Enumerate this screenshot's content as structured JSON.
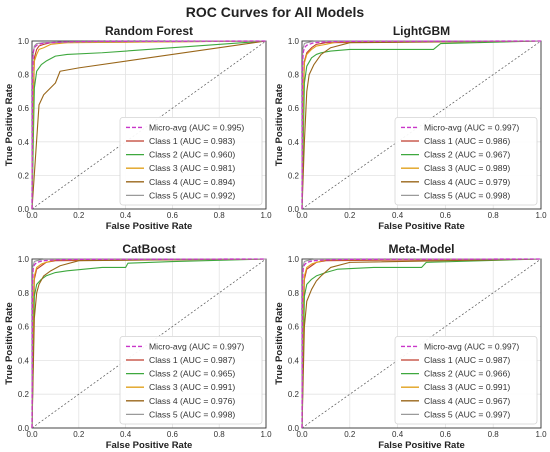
{
  "figure": {
    "title": "ROC Curves for All Models"
  },
  "colors": {
    "micro": "#c936c9",
    "class1": "#c03d2e",
    "class2": "#3ea83e",
    "class3": "#e0a11b",
    "class4": "#996619",
    "class5": "#9a9a9a",
    "diagonal": "#555555",
    "grid": "#e3e3e3",
    "axis": "#333333"
  },
  "chart_data": [
    {
      "type": "line",
      "title": "Random Forest",
      "xlabel": "False Positive Rate",
      "ylabel": "True Positive Rate",
      "xlim": [
        0,
        1
      ],
      "ylim": [
        0,
        1
      ],
      "xticks": [
        "0.0",
        "0.2",
        "0.4",
        "0.6",
        "0.8",
        "1.0"
      ],
      "yticks": [
        "0.0",
        "0.2",
        "0.4",
        "0.6",
        "0.8",
        "1.0"
      ],
      "grid": true,
      "legend_position": "lower-right",
      "diagonal": [
        [
          0,
          0
        ],
        [
          1,
          1
        ]
      ],
      "series": [
        {
          "name": "Micro-avg (AUC = 0.995)",
          "color_key": "micro",
          "dashed": true,
          "x": [
            0,
            0.002,
            0.005,
            0.01,
            0.02,
            0.04,
            0.08,
            0.15,
            0.3,
            1.0
          ],
          "y": [
            0,
            0.8,
            0.93,
            0.96,
            0.975,
            0.985,
            0.99,
            0.995,
            0.998,
            1.0
          ]
        },
        {
          "name": "Class 1 (AUC = 0.983)",
          "color_key": "class1",
          "x": [
            0,
            0.005,
            0.01,
            0.02,
            0.03,
            0.05,
            0.08,
            1.0
          ],
          "y": [
            0,
            0.55,
            0.9,
            0.95,
            0.97,
            0.98,
            0.99,
            1.0
          ]
        },
        {
          "name": "Class 2 (AUC = 0.960)",
          "color_key": "class2",
          "x": [
            0,
            0.01,
            0.02,
            0.04,
            0.06,
            0.1,
            0.15,
            0.3,
            1.0
          ],
          "y": [
            0,
            0.72,
            0.82,
            0.86,
            0.88,
            0.91,
            0.92,
            0.93,
            1.0
          ]
        },
        {
          "name": "Class 3 (AUC = 0.981)",
          "color_key": "class3",
          "x": [
            0,
            0.005,
            0.01,
            0.02,
            0.03,
            0.05,
            0.08,
            0.15,
            1.0
          ],
          "y": [
            0,
            0.7,
            0.88,
            0.92,
            0.95,
            0.96,
            0.98,
            0.99,
            1.0
          ]
        },
        {
          "name": "Class 4 (AUC = 0.894)",
          "color_key": "class4",
          "x": [
            0,
            0.03,
            0.05,
            0.1,
            0.12,
            0.2,
            1.0
          ],
          "y": [
            0,
            0.62,
            0.68,
            0.75,
            0.82,
            0.84,
            1.0
          ]
        },
        {
          "name": "Class 5 (AUC = 0.992)",
          "color_key": "class5",
          "x": [
            0,
            0.003,
            0.01,
            0.02,
            0.05,
            0.2,
            1.0
          ],
          "y": [
            0,
            0.9,
            0.97,
            0.985,
            0.99,
            0.995,
            1.0
          ]
        }
      ]
    },
    {
      "type": "line",
      "title": "LightGBM",
      "xlabel": "False Positive Rate",
      "ylabel": "True Positive Rate",
      "xlim": [
        0,
        1
      ],
      "ylim": [
        0,
        1
      ],
      "xticks": [
        "0.0",
        "0.2",
        "0.4",
        "0.6",
        "0.8",
        "1.0"
      ],
      "yticks": [
        "0.0",
        "0.2",
        "0.4",
        "0.6",
        "0.8",
        "1.0"
      ],
      "grid": true,
      "legend_position": "lower-right",
      "diagonal": [
        [
          0,
          0
        ],
        [
          1,
          1
        ]
      ],
      "series": [
        {
          "name": "Micro-avg (AUC = 0.997)",
          "color_key": "micro",
          "dashed": true,
          "x": [
            0,
            0.002,
            0.005,
            0.01,
            0.02,
            0.05,
            0.1,
            0.2,
            1.0
          ],
          "y": [
            0,
            0.85,
            0.93,
            0.96,
            0.975,
            0.99,
            0.995,
            0.998,
            1.0
          ]
        },
        {
          "name": "Class 1 (AUC = 0.986)",
          "color_key": "class1",
          "x": [
            0,
            0.005,
            0.01,
            0.02,
            0.04,
            0.06,
            0.1,
            1.0
          ],
          "y": [
            0,
            0.6,
            0.88,
            0.93,
            0.96,
            0.98,
            0.99,
            1.0
          ]
        },
        {
          "name": "Class 2 (AUC = 0.967)",
          "color_key": "class2",
          "x": [
            0,
            0.01,
            0.02,
            0.04,
            0.06,
            0.08,
            0.12,
            0.2,
            0.55,
            0.58,
            1.0
          ],
          "y": [
            0,
            0.75,
            0.85,
            0.9,
            0.92,
            0.93,
            0.94,
            0.95,
            0.95,
            0.985,
            1.0
          ]
        },
        {
          "name": "Class 3 (AUC = 0.989)",
          "color_key": "class3",
          "x": [
            0,
            0.005,
            0.01,
            0.02,
            0.04,
            0.06,
            0.1,
            0.15,
            1.0
          ],
          "y": [
            0,
            0.7,
            0.87,
            0.92,
            0.95,
            0.97,
            0.98,
            0.995,
            1.0
          ]
        },
        {
          "name": "Class 4 (AUC = 0.979)",
          "color_key": "class4",
          "x": [
            0,
            0.01,
            0.02,
            0.03,
            0.05,
            0.08,
            0.12,
            0.2,
            1.0
          ],
          "y": [
            0,
            0.4,
            0.7,
            0.8,
            0.86,
            0.92,
            0.96,
            0.99,
            1.0
          ]
        },
        {
          "name": "Class 5 (AUC = 0.998)",
          "color_key": "class5",
          "x": [
            0,
            0.003,
            0.01,
            0.02,
            0.05,
            1.0
          ],
          "y": [
            0,
            0.95,
            0.985,
            0.99,
            0.998,
            1.0
          ]
        }
      ]
    },
    {
      "type": "line",
      "title": "CatBoost",
      "xlabel": "False Positive Rate",
      "ylabel": "True Positive Rate",
      "xlim": [
        0,
        1
      ],
      "ylim": [
        0,
        1
      ],
      "xticks": [
        "0.0",
        "0.2",
        "0.4",
        "0.6",
        "0.8",
        "1.0"
      ],
      "yticks": [
        "0.0",
        "0.2",
        "0.4",
        "0.6",
        "0.8",
        "1.0"
      ],
      "grid": true,
      "legend_position": "lower-right",
      "diagonal": [
        [
          0,
          0
        ],
        [
          1,
          1
        ]
      ],
      "series": [
        {
          "name": "Micro-avg (AUC = 0.997)",
          "color_key": "micro",
          "dashed": true,
          "x": [
            0,
            0.002,
            0.005,
            0.01,
            0.02,
            0.05,
            0.1,
            0.2,
            1.0
          ],
          "y": [
            0,
            0.86,
            0.94,
            0.965,
            0.98,
            0.99,
            0.995,
            0.998,
            1.0
          ]
        },
        {
          "name": "Class 1 (AUC = 0.987)",
          "color_key": "class1",
          "x": [
            0,
            0.005,
            0.01,
            0.02,
            0.04,
            0.06,
            0.1,
            1.0
          ],
          "y": [
            0,
            0.5,
            0.88,
            0.94,
            0.96,
            0.98,
            0.99,
            1.0
          ]
        },
        {
          "name": "Class 2 (AUC = 0.965)",
          "color_key": "class2",
          "x": [
            0,
            0.01,
            0.02,
            0.04,
            0.06,
            0.1,
            0.15,
            0.3,
            0.4,
            0.41,
            0.6,
            1.0
          ],
          "y": [
            0,
            0.78,
            0.85,
            0.88,
            0.9,
            0.92,
            0.93,
            0.95,
            0.95,
            0.975,
            0.985,
            1.0
          ]
        },
        {
          "name": "Class 3 (AUC = 0.991)",
          "color_key": "class3",
          "x": [
            0,
            0.005,
            0.01,
            0.02,
            0.04,
            0.06,
            0.1,
            1.0
          ],
          "y": [
            0,
            0.75,
            0.9,
            0.95,
            0.97,
            0.98,
            0.995,
            1.0
          ]
        },
        {
          "name": "Class 4 (AUC = 0.976)",
          "color_key": "class4",
          "x": [
            0,
            0.01,
            0.02,
            0.03,
            0.05,
            0.08,
            0.12,
            0.2,
            1.0
          ],
          "y": [
            0,
            0.65,
            0.8,
            0.85,
            0.9,
            0.93,
            0.96,
            0.99,
            1.0
          ]
        },
        {
          "name": "Class 5 (AUC = 0.998)",
          "color_key": "class5",
          "x": [
            0,
            0.003,
            0.01,
            0.02,
            0.05,
            1.0
          ],
          "y": [
            0,
            0.95,
            0.985,
            0.99,
            0.998,
            1.0
          ]
        }
      ]
    },
    {
      "type": "line",
      "title": "Meta-Model",
      "xlabel": "False Positive Rate",
      "ylabel": "True Positive Rate",
      "xlim": [
        0,
        1
      ],
      "ylim": [
        0,
        1
      ],
      "xticks": [
        "0.0",
        "0.2",
        "0.4",
        "0.6",
        "0.8",
        "1.0"
      ],
      "yticks": [
        "0.0",
        "0.2",
        "0.4",
        "0.6",
        "0.8",
        "1.0"
      ],
      "grid": true,
      "legend_position": "lower-right",
      "diagonal": [
        [
          0,
          0
        ],
        [
          1,
          1
        ]
      ],
      "series": [
        {
          "name": "Micro-avg (AUC = 0.997)",
          "color_key": "micro",
          "dashed": true,
          "x": [
            0,
            0.002,
            0.005,
            0.01,
            0.02,
            0.05,
            0.1,
            0.2,
            1.0
          ],
          "y": [
            0,
            0.86,
            0.94,
            0.965,
            0.98,
            0.99,
            0.995,
            0.998,
            1.0
          ]
        },
        {
          "name": "Class 1 (AUC = 0.987)",
          "color_key": "class1",
          "x": [
            0,
            0.005,
            0.01,
            0.02,
            0.04,
            0.06,
            0.1,
            1.0
          ],
          "y": [
            0,
            0.55,
            0.88,
            0.94,
            0.96,
            0.98,
            0.99,
            1.0
          ]
        },
        {
          "name": "Class 2 (AUC = 0.966)",
          "color_key": "class2",
          "x": [
            0,
            0.01,
            0.02,
            0.04,
            0.06,
            0.1,
            0.15,
            0.3,
            0.5,
            0.52,
            1.0
          ],
          "y": [
            0,
            0.78,
            0.85,
            0.88,
            0.9,
            0.92,
            0.94,
            0.95,
            0.95,
            0.98,
            1.0
          ]
        },
        {
          "name": "Class 3 (AUC = 0.991)",
          "color_key": "class3",
          "x": [
            0,
            0.005,
            0.01,
            0.02,
            0.04,
            0.06,
            0.1,
            1.0
          ],
          "y": [
            0,
            0.75,
            0.9,
            0.95,
            0.97,
            0.98,
            0.995,
            1.0
          ]
        },
        {
          "name": "Class 4 (AUC = 0.967)",
          "color_key": "class4",
          "x": [
            0,
            0.01,
            0.02,
            0.04,
            0.06,
            0.08,
            0.12,
            0.2,
            1.0
          ],
          "y": [
            0,
            0.6,
            0.75,
            0.82,
            0.87,
            0.9,
            0.95,
            0.98,
            1.0
          ]
        },
        {
          "name": "Class 5 (AUC = 0.997)",
          "color_key": "class5",
          "x": [
            0,
            0.003,
            0.01,
            0.02,
            0.05,
            1.0
          ],
          "y": [
            0,
            0.95,
            0.985,
            0.99,
            0.998,
            1.0
          ]
        }
      ]
    }
  ]
}
